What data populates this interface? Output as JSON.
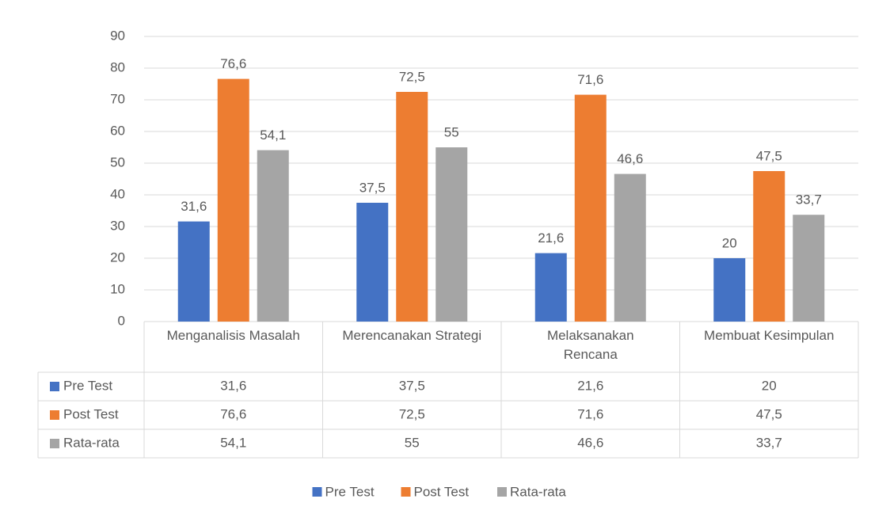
{
  "chart_data": {
    "type": "bar",
    "categories": [
      "Menganalisis Masalah",
      "Merencanakan Strategi",
      "Melaksanakan Rencana",
      "Membuat Kesimpulan"
    ],
    "series": [
      {
        "name": "Pre Test",
        "color": "#4472c4",
        "values": [
          31.6,
          37.5,
          21.6,
          20
        ],
        "value_labels": [
          "31,6",
          "37,5",
          "21,6",
          "20"
        ]
      },
      {
        "name": "Post Test",
        "color": "#ed7d31",
        "values": [
          76.6,
          72.5,
          71.6,
          47.5
        ],
        "value_labels": [
          "76,6",
          "72,5",
          "71,6",
          "47,5"
        ]
      },
      {
        "name": "Rata-rata",
        "color": "#a5a5a5",
        "values": [
          54.1,
          55,
          46.6,
          33.7
        ],
        "value_labels": [
          "54,1",
          "55",
          "46,6",
          "33,7"
        ]
      }
    ],
    "ylim": [
      0,
      90
    ],
    "yticks": [
      0,
      10,
      20,
      30,
      40,
      50,
      60,
      70,
      80,
      90
    ],
    "grid": true,
    "legend": "bottom"
  }
}
